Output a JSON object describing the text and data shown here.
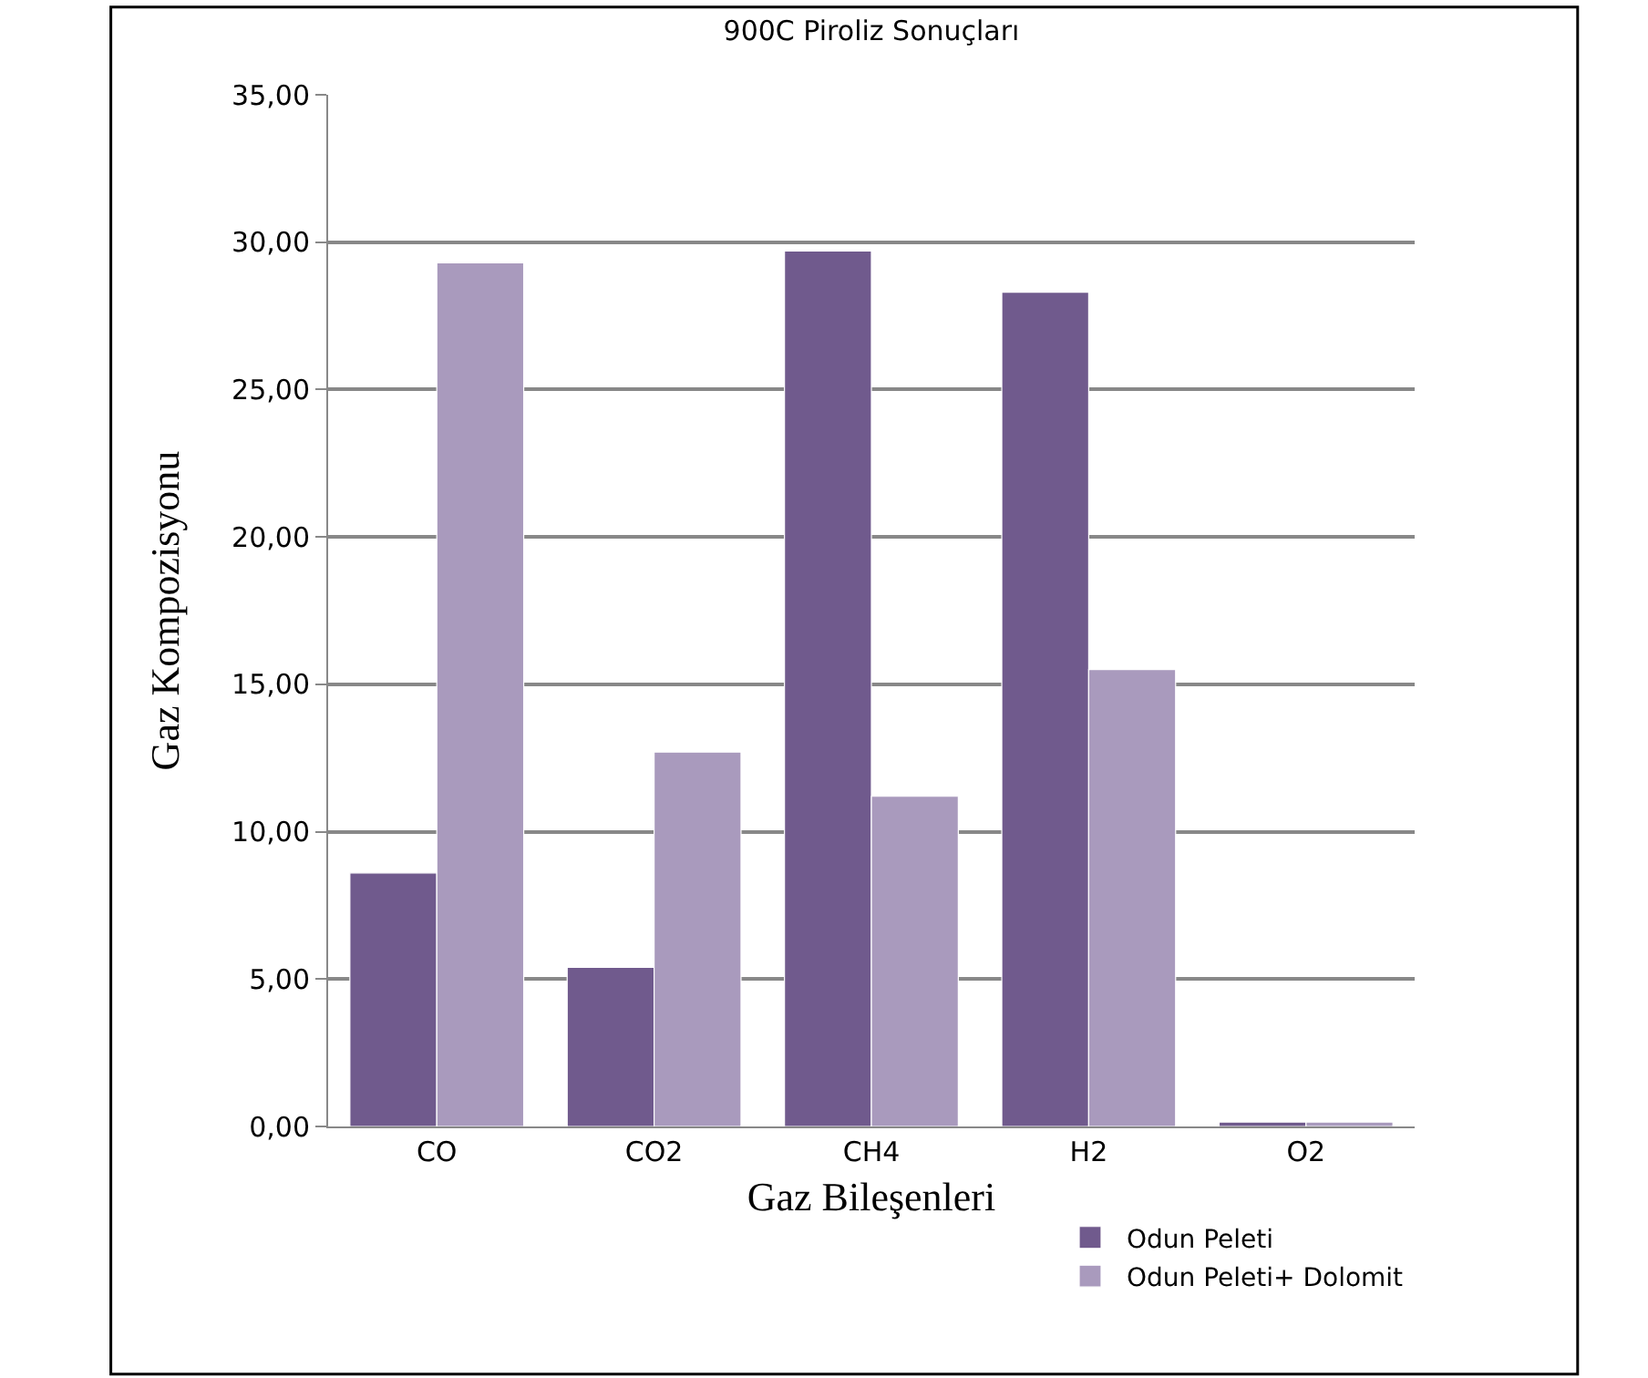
{
  "chart_data": {
    "type": "bar",
    "title": "900C Piroliz Sonuçları",
    "xlabel": "Gaz Bileşenleri",
    "ylabel": "Gaz Kompozisyonu",
    "categories": [
      "CO",
      "CO2",
      "CH4",
      "H2",
      "O2"
    ],
    "series": [
      {
        "name": "Odun Peleti",
        "color": "#705a8d",
        "values": [
          8.6,
          5.4,
          29.7,
          28.3,
          0.15
        ]
      },
      {
        "name": "Odun Peleti+ Dolomit",
        "color": "#a99abd",
        "values": [
          29.3,
          12.7,
          11.2,
          15.5,
          0.15
        ]
      }
    ],
    "ylim": [
      0,
      35
    ],
    "yticks": [
      {
        "value": 0,
        "label": "0,00"
      },
      {
        "value": 5,
        "label": "5,00"
      },
      {
        "value": 10,
        "label": "10,00"
      },
      {
        "value": 15,
        "label": "15,00"
      },
      {
        "value": 20,
        "label": "20,00"
      },
      {
        "value": 25,
        "label": "25,00"
      },
      {
        "value": 30,
        "label": "30,00"
      },
      {
        "value": 35,
        "label": "35,00"
      }
    ],
    "grid": "y",
    "legend": "bottom right"
  }
}
